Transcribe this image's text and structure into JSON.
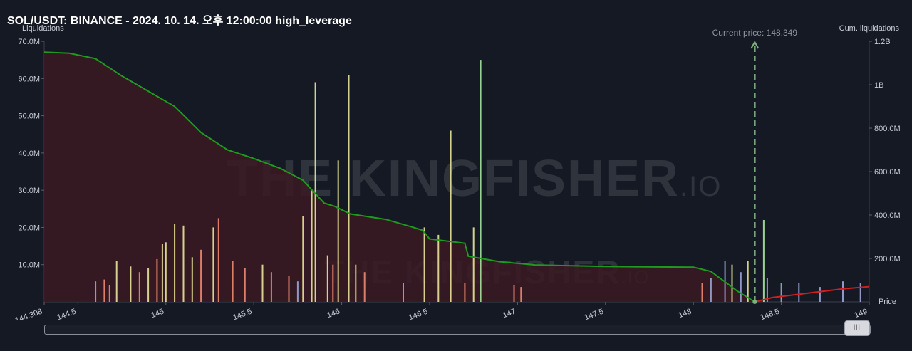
{
  "title": "SOL/USDT: BINANCE - 2024. 10. 14. 오후 12:00:00 high_leverage",
  "watermark": {
    "main": "THE KINGFISHER",
    "suffix": ".IO"
  },
  "chart_data": {
    "type": "bar",
    "left_axis_label": "Liquidations",
    "right_axis_label": "Cum. liquidations",
    "x_axis_label": "Price",
    "x_range": [
      144.308,
      149
    ],
    "x_ticks": [
      "144.308",
      "144.5",
      "145",
      "145.5",
      "146",
      "146.5",
      "147",
      "147.5",
      "148",
      "148.5",
      "149"
    ],
    "x_tick_values": [
      144.308,
      144.5,
      145,
      145.5,
      146,
      146.5,
      147,
      147.5,
      148,
      148.5,
      149
    ],
    "y_left_range": [
      0,
      70000000
    ],
    "y_left_ticks": [
      "10.0M",
      "20.0M",
      "30.0M",
      "40.0M",
      "50.0M",
      "60.0M",
      "70.0M"
    ],
    "y_left_tick_values": [
      10000000,
      20000000,
      30000000,
      40000000,
      50000000,
      60000000,
      70000000
    ],
    "y_right_range": [
      0,
      1200000000
    ],
    "y_right_ticks": [
      "200.0M",
      "400.0M",
      "600.0M",
      "800.0M",
      "1B",
      "1.2B"
    ],
    "y_right_tick_values": [
      200000000,
      400000000,
      600000000,
      800000000,
      1000000000,
      1200000000
    ],
    "current_price": 148.349,
    "current_price_label": "Current price: 148.349",
    "colors": {
      "long_cum": "#1f9a1f",
      "short_cum": "#d11f1f",
      "area": "#3a1a22",
      "bar_yellow": "#e8e59a",
      "bar_green": "#a8e6a0",
      "bar_salmon": "#f08a70",
      "bar_blue": "#9aa6d8"
    },
    "cum_long_series": {
      "name": "",
      "points": [
        [
          144.308,
          1150000000
        ],
        [
          144.45,
          1145000000
        ],
        [
          144.6,
          1120000000
        ],
        [
          144.75,
          1040000000
        ],
        [
          144.9,
          970000000
        ],
        [
          145.05,
          900000000
        ],
        [
          145.2,
          780000000
        ],
        [
          145.35,
          700000000
        ],
        [
          145.5,
          660000000
        ],
        [
          145.65,
          615000000
        ],
        [
          145.78,
          560000000
        ],
        [
          145.9,
          455000000
        ],
        [
          145.96,
          440000000
        ],
        [
          146.05,
          405000000
        ],
        [
          146.25,
          380000000
        ],
        [
          146.4,
          345000000
        ],
        [
          146.46,
          330000000
        ],
        [
          146.5,
          290000000
        ],
        [
          146.7,
          270000000
        ],
        [
          146.72,
          210000000
        ],
        [
          146.9,
          185000000
        ],
        [
          147.1,
          170000000
        ],
        [
          147.5,
          163000000
        ],
        [
          148.0,
          160000000
        ],
        [
          148.1,
          140000000
        ],
        [
          148.25,
          50000000
        ],
        [
          148.349,
          0
        ]
      ]
    },
    "cum_short_series": {
      "name": "",
      "points": [
        [
          148.349,
          0
        ],
        [
          148.45,
          20000000
        ],
        [
          148.55,
          30000000
        ],
        [
          148.7,
          45000000
        ],
        [
          148.85,
          60000000
        ],
        [
          149.0,
          70000000
        ]
      ]
    },
    "bars": [
      {
        "x": 145.85,
        "v": 59000000,
        "c": "yellow"
      },
      {
        "x": 146.04,
        "v": 61000000,
        "c": "yellow"
      },
      {
        "x": 146.79,
        "v": 65000000,
        "c": "green"
      },
      {
        "x": 146.62,
        "v": 46000000,
        "c": "yellow"
      },
      {
        "x": 145.83,
        "v": 30000000,
        "c": "yellow"
      },
      {
        "x": 145.98,
        "v": 38000000,
        "c": "yellow"
      },
      {
        "x": 145.78,
        "v": 23000000,
        "c": "yellow"
      },
      {
        "x": 146.47,
        "v": 20000000,
        "c": "yellow"
      },
      {
        "x": 146.75,
        "v": 20000000,
        "c": "yellow"
      },
      {
        "x": 148.4,
        "v": 22000000,
        "c": "green"
      },
      {
        "x": 145.05,
        "v": 21000000,
        "c": "yellow"
      },
      {
        "x": 145.1,
        "v": 20500000,
        "c": "yellow"
      },
      {
        "x": 145.3,
        "v": 22500000,
        "c": "salmon"
      },
      {
        "x": 145.27,
        "v": 20000000,
        "c": "yellow"
      },
      {
        "x": 145.2,
        "v": 14000000,
        "c": "salmon"
      },
      {
        "x": 145.15,
        "v": 12000000,
        "c": "yellow"
      },
      {
        "x": 144.98,
        "v": 15500000,
        "c": "yellow"
      },
      {
        "x": 144.95,
        "v": 11500000,
        "c": "salmon"
      },
      {
        "x": 145.0,
        "v": 16000000,
        "c": "yellow"
      },
      {
        "x": 145.38,
        "v": 11000000,
        "c": "salmon"
      },
      {
        "x": 145.45,
        "v": 9000000,
        "c": "salmon"
      },
      {
        "x": 145.55,
        "v": 10000000,
        "c": "yellow"
      },
      {
        "x": 145.6,
        "v": 8000000,
        "c": "salmon"
      },
      {
        "x": 144.72,
        "v": 11000000,
        "c": "yellow"
      },
      {
        "x": 144.8,
        "v": 9500000,
        "c": "yellow"
      },
      {
        "x": 144.85,
        "v": 8000000,
        "c": "salmon"
      },
      {
        "x": 144.9,
        "v": 9000000,
        "c": "yellow"
      },
      {
        "x": 144.6,
        "v": 5500000,
        "c": "blue"
      },
      {
        "x": 144.65,
        "v": 6000000,
        "c": "salmon"
      },
      {
        "x": 144.68,
        "v": 4500000,
        "c": "salmon"
      },
      {
        "x": 145.92,
        "v": 12500000,
        "c": "yellow"
      },
      {
        "x": 145.95,
        "v": 10000000,
        "c": "salmon"
      },
      {
        "x": 146.08,
        "v": 10000000,
        "c": "yellow"
      },
      {
        "x": 146.13,
        "v": 8000000,
        "c": "salmon"
      },
      {
        "x": 146.35,
        "v": 5000000,
        "c": "blue"
      },
      {
        "x": 146.55,
        "v": 18000000,
        "c": "yellow"
      },
      {
        "x": 146.7,
        "v": 5000000,
        "c": "salmon"
      },
      {
        "x": 146.98,
        "v": 4500000,
        "c": "salmon"
      },
      {
        "x": 147.02,
        "v": 4000000,
        "c": "salmon"
      },
      {
        "x": 145.7,
        "v": 7000000,
        "c": "salmon"
      },
      {
        "x": 145.75,
        "v": 5500000,
        "c": "blue"
      },
      {
        "x": 148.05,
        "v": 5000000,
        "c": "salmon"
      },
      {
        "x": 148.1,
        "v": 6500000,
        "c": "blue"
      },
      {
        "x": 148.18,
        "v": 11000000,
        "c": "blue"
      },
      {
        "x": 148.22,
        "v": 10000000,
        "c": "yellow"
      },
      {
        "x": 148.27,
        "v": 8000000,
        "c": "blue"
      },
      {
        "x": 148.31,
        "v": 11000000,
        "c": "yellow"
      },
      {
        "x": 148.42,
        "v": 6500000,
        "c": "blue"
      },
      {
        "x": 148.5,
        "v": 5000000,
        "c": "blue"
      },
      {
        "x": 148.6,
        "v": 5000000,
        "c": "blue"
      },
      {
        "x": 148.72,
        "v": 4000000,
        "c": "blue"
      },
      {
        "x": 148.85,
        "v": 5500000,
        "c": "blue"
      },
      {
        "x": 148.95,
        "v": 5000000,
        "c": "blue"
      }
    ]
  }
}
